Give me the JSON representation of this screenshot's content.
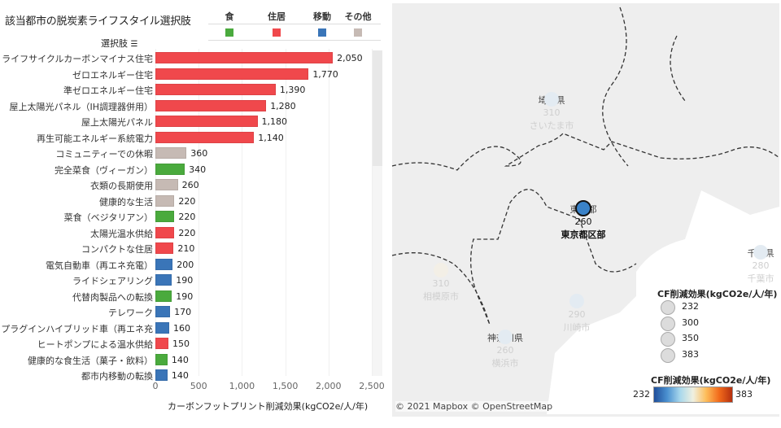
{
  "title": "該当都市の脱炭素ライフスタイル選択肢",
  "legend": [
    {
      "label": "食",
      "color": "#4aaa3d"
    },
    {
      "label": "住居",
      "color": "#f0484c"
    },
    {
      "label": "移動",
      "color": "#3a75b8"
    },
    {
      "label": "その他",
      "color": "#c6bab4"
    }
  ],
  "column_header": "選択肢",
  "sort_icon": "sort-descending-icon",
  "chart_data": {
    "type": "bar",
    "orientation": "horizontal",
    "xlabel": "カーボンフットプリント削減効果(kgCO2e/人/年)",
    "xlim": [
      0,
      2500
    ],
    "ticks": [
      "0",
      "500",
      "1,000",
      "1,500",
      "2,000",
      "2,500"
    ],
    "grid": true,
    "rows": [
      {
        "label": "ライフサイクルカーボンマイナス住宅",
        "value": 2050,
        "value_label": "2,050",
        "category": "住居"
      },
      {
        "label": "ゼロエネルギー住宅",
        "value": 1770,
        "value_label": "1,770",
        "category": "住居"
      },
      {
        "label": "準ゼロエネルギー住宅",
        "value": 1390,
        "value_label": "1,390",
        "category": "住居"
      },
      {
        "label": "屋上太陽光パネル（IH調理器併用）",
        "value": 1280,
        "value_label": "1,280",
        "category": "住居"
      },
      {
        "label": "屋上太陽光パネル",
        "value": 1180,
        "value_label": "1,180",
        "category": "住居"
      },
      {
        "label": "再生可能エネルギー系統電力",
        "value": 1140,
        "value_label": "1,140",
        "category": "住居"
      },
      {
        "label": "コミュニティーでの休暇",
        "value": 360,
        "value_label": "360",
        "category": "その他"
      },
      {
        "label": "完全菜食（ヴィーガン）",
        "value": 340,
        "value_label": "340",
        "category": "食"
      },
      {
        "label": "衣類の長期使用",
        "value": 260,
        "value_label": "260",
        "category": "その他"
      },
      {
        "label": "健康的な生活",
        "value": 220,
        "value_label": "220",
        "category": "その他"
      },
      {
        "label": "菜食（ベジタリアン）",
        "value": 220,
        "value_label": "220",
        "category": "食"
      },
      {
        "label": "太陽光温水供給",
        "value": 220,
        "value_label": "220",
        "category": "住居"
      },
      {
        "label": "コンパクトな住居",
        "value": 210,
        "value_label": "210",
        "category": "住居"
      },
      {
        "label": "電気自動車（再エネ充電）",
        "value": 200,
        "value_label": "200",
        "category": "移動"
      },
      {
        "label": "ライドシェアリング",
        "value": 190,
        "value_label": "190",
        "category": "移動"
      },
      {
        "label": "代替肉製品への転換",
        "value": 190,
        "value_label": "190",
        "category": "食"
      },
      {
        "label": "テレワーク",
        "value": 170,
        "value_label": "170",
        "category": "移動"
      },
      {
        "label": "プラグインハイブリッド車（再エネ充",
        "value": 160,
        "value_label": "160",
        "category": "移動"
      },
      {
        "label": "ヒートポンプによる温水供給",
        "value": 150,
        "value_label": "150",
        "category": "住居"
      },
      {
        "label": "健康的な食生活（菓子・飲料）",
        "value": 140,
        "value_label": "140",
        "category": "食"
      },
      {
        "label": "都市内移動の転換",
        "value": 140,
        "value_label": "140",
        "category": "移動"
      }
    ]
  },
  "map": {
    "cities": [
      {
        "pref": "埼玉県",
        "value": "310",
        "city": "さいたま市",
        "selected": false
      },
      {
        "pref": "東京都",
        "value": "260",
        "city": "東京都区部",
        "selected": true,
        "color": "#3a82c8"
      },
      {
        "pref": "千葉県",
        "value": "280",
        "city": "千葉市",
        "selected": false
      },
      {
        "pref": "",
        "value": "310",
        "city": "相模原市",
        "selected": false
      },
      {
        "pref": "",
        "value": "290",
        "city": "川崎市",
        "selected": false
      },
      {
        "pref": "神奈川県",
        "value": "260",
        "city": "横浜市",
        "selected": false
      }
    ],
    "size_legend": {
      "title": "CF削減効果(kgCO2e/人/年)",
      "values": [
        "232",
        "300",
        "350",
        "383"
      ]
    },
    "color_legend": {
      "title": "CF削減効果(kgCO2e/人/年)",
      "min": "232",
      "max": "383",
      "colors": [
        "#1f4e9a",
        "#a8d8ec",
        "#fdbd5a",
        "#b5300f"
      ]
    },
    "attribution": "© 2021 Mapbox  © OpenStreetMap"
  }
}
